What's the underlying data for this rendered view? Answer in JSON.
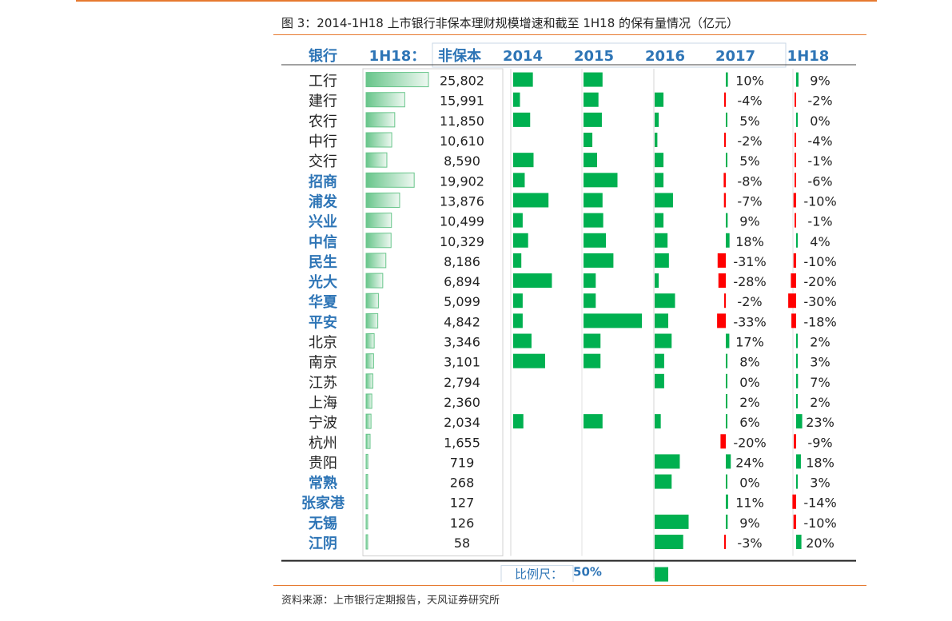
{
  "caption": "图 3：2014-1H18 上市银行非保本理财规模增速和截至 1H18 的保有量情况（亿元）",
  "source": "资料来源：上市银行定期报告，天风证券研究所",
  "chart_data": {
    "type": "table",
    "headers": {
      "bank": "银行",
      "size_period": "1H18：",
      "size_type": "非保本",
      "years": [
        "2014",
        "2015",
        "2016",
        "2017",
        "1H18"
      ]
    },
    "scale_label": "比例尺：",
    "scale_value": "50%",
    "scale_fraction": 0.5,
    "colors": {
      "positive": "#00b050",
      "negative": "#ff0000",
      "header": "#2e75b6",
      "size_bar": "#67c58a",
      "dark_text": "#222222"
    },
    "rows": [
      {
        "bank": "工行",
        "highlight": false,
        "value": 25802,
        "value_label": "25,802",
        "g2014": 0.29,
        "g2015": 0.28,
        "g2016": null,
        "g2017": 0.1,
        "g2017_label": "10%",
        "g1h18": 0.09,
        "g1h18_label": "9%"
      },
      {
        "bank": "建行",
        "highlight": false,
        "value": 15991,
        "value_label": "15,991",
        "g2014": 0.1,
        "g2015": 0.22,
        "g2016": 0.13,
        "g2017": -0.04,
        "g2017_label": "-4%",
        "g1h18": -0.02,
        "g1h18_label": "-2%"
      },
      {
        "bank": "农行",
        "highlight": false,
        "value": 11850,
        "value_label": "11,850",
        "g2014": 0.25,
        "g2015": 0.27,
        "g2016": 0.06,
        "g2017": 0.05,
        "g2017_label": "5%",
        "g1h18": 0.0,
        "g1h18_label": "0%"
      },
      {
        "bank": "中行",
        "highlight": false,
        "value": 10610,
        "value_label": "10,610",
        "g2014": null,
        "g2015": 0.13,
        "g2016": 0.04,
        "g2017": -0.02,
        "g2017_label": "-2%",
        "g1h18": -0.04,
        "g1h18_label": "-4%"
      },
      {
        "bank": "交行",
        "highlight": false,
        "value": 8590,
        "value_label": "8,590",
        "g2014": 0.3,
        "g2015": 0.2,
        "g2016": 0.13,
        "g2017": 0.05,
        "g2017_label": "5%",
        "g1h18": -0.01,
        "g1h18_label": "-1%"
      },
      {
        "bank": "招商",
        "highlight": true,
        "value": 19902,
        "value_label": "19,902",
        "g2014": 0.17,
        "g2015": 0.5,
        "g2016": 0.13,
        "g2017": -0.08,
        "g2017_label": "-8%",
        "g1h18": -0.06,
        "g1h18_label": "-6%"
      },
      {
        "bank": "浦发",
        "highlight": true,
        "value": 13876,
        "value_label": "13,876",
        "g2014": 0.52,
        "g2015": 0.28,
        "g2016": 0.27,
        "g2017": -0.07,
        "g2017_label": "-7%",
        "g1h18": -0.1,
        "g1h18_label": "-10%"
      },
      {
        "bank": "兴业",
        "highlight": true,
        "value": 10499,
        "value_label": "10,499",
        "g2014": 0.14,
        "g2015": 0.29,
        "g2016": 0.13,
        "g2017": 0.09,
        "g2017_label": "9%",
        "g1h18": -0.01,
        "g1h18_label": "-1%"
      },
      {
        "bank": "中信",
        "highlight": true,
        "value": 10329,
        "value_label": "10,329",
        "g2014": 0.22,
        "g2015": 0.33,
        "g2016": 0.19,
        "g2017": 0.18,
        "g2017_label": "18%",
        "g1h18": 0.04,
        "g1h18_label": "4%"
      },
      {
        "bank": "民生",
        "highlight": true,
        "value": 8186,
        "value_label": "8,186",
        "g2014": 0.12,
        "g2015": 0.44,
        "g2016": 0.21,
        "g2017": -0.31,
        "g2017_label": "-31%",
        "g1h18": -0.1,
        "g1h18_label": "-10%"
      },
      {
        "bank": "光大",
        "highlight": true,
        "value": 6894,
        "value_label": "6,894",
        "g2014": 0.57,
        "g2015": 0.18,
        "g2016": 0.06,
        "g2017": -0.28,
        "g2017_label": "-28%",
        "g1h18": -0.2,
        "g1h18_label": "-20%"
      },
      {
        "bank": "华夏",
        "highlight": true,
        "value": 5099,
        "value_label": "5,099",
        "g2014": 0.14,
        "g2015": 0.18,
        "g2016": 0.3,
        "g2017": -0.02,
        "g2017_label": "-2%",
        "g1h18": -0.3,
        "g1h18_label": "-30%"
      },
      {
        "bank": "平安",
        "highlight": true,
        "value": 4842,
        "value_label": "4,842",
        "g2014": 0.14,
        "g2015": 0.86,
        "g2016": 0.2,
        "g2017": -0.33,
        "g2017_label": "-33%",
        "g1h18": -0.18,
        "g1h18_label": "-18%"
      },
      {
        "bank": "北京",
        "highlight": false,
        "value": 3346,
        "value_label": "3,346",
        "g2014": 0.27,
        "g2015": 0.25,
        "g2016": 0.25,
        "g2017": 0.17,
        "g2017_label": "17%",
        "g1h18": 0.02,
        "g1h18_label": "2%"
      },
      {
        "bank": "南京",
        "highlight": false,
        "value": 3101,
        "value_label": "3,101",
        "g2014": 0.47,
        "g2015": 0.25,
        "g2016": 0.14,
        "g2017": 0.08,
        "g2017_label": "8%",
        "g1h18": 0.03,
        "g1h18_label": "3%"
      },
      {
        "bank": "江苏",
        "highlight": false,
        "value": 2794,
        "value_label": "2,794",
        "g2014": null,
        "g2015": null,
        "g2016": 0.14,
        "g2017": 0.0,
        "g2017_label": "0%",
        "g1h18": 0.07,
        "g1h18_label": "7%"
      },
      {
        "bank": "上海",
        "highlight": false,
        "value": 2360,
        "value_label": "2,360",
        "g2014": null,
        "g2015": null,
        "g2016": null,
        "g2017": 0.02,
        "g2017_label": "2%",
        "g1h18": 0.02,
        "g1h18_label": "2%"
      },
      {
        "bank": "宁波",
        "highlight": false,
        "value": 2034,
        "value_label": "2,034",
        "g2014": 0.15,
        "g2015": 0.28,
        "g2016": 0.09,
        "g2017": 0.06,
        "g2017_label": "6%",
        "g1h18": 0.23,
        "g1h18_label": "23%"
      },
      {
        "bank": "杭州",
        "highlight": false,
        "value": 1655,
        "value_label": "1,655",
        "g2014": null,
        "g2015": null,
        "g2016": null,
        "g2017": -0.2,
        "g2017_label": "-20%",
        "g1h18": -0.09,
        "g1h18_label": "-9%"
      },
      {
        "bank": "贵阳",
        "highlight": false,
        "value": 719,
        "value_label": "719",
        "g2014": null,
        "g2015": null,
        "g2016": 0.37,
        "g2017": 0.24,
        "g2017_label": "24%",
        "g1h18": 0.18,
        "g1h18_label": "18%"
      },
      {
        "bank": "常熟",
        "highlight": true,
        "value": 268,
        "value_label": "268",
        "g2014": null,
        "g2015": null,
        "g2016": 0.25,
        "g2017": 0.0,
        "g2017_label": "0%",
        "g1h18": 0.03,
        "g1h18_label": "3%"
      },
      {
        "bank": "张家港",
        "highlight": true,
        "value": 127,
        "value_label": "127",
        "g2014": null,
        "g2015": null,
        "g2016": null,
        "g2017": 0.11,
        "g2017_label": "11%",
        "g1h18": -0.14,
        "g1h18_label": "-14%"
      },
      {
        "bank": "无锡",
        "highlight": true,
        "value": 126,
        "value_label": "126",
        "g2014": null,
        "g2015": null,
        "g2016": 0.5,
        "g2017": 0.09,
        "g2017_label": "9%",
        "g1h18": -0.1,
        "g1h18_label": "-10%"
      },
      {
        "bank": "江阴",
        "highlight": true,
        "value": 58,
        "value_label": "58",
        "g2014": null,
        "g2015": null,
        "g2016": 0.42,
        "g2017": -0.03,
        "g2017_label": "-3%",
        "g1h18": 0.2,
        "g1h18_label": "20%"
      }
    ]
  }
}
